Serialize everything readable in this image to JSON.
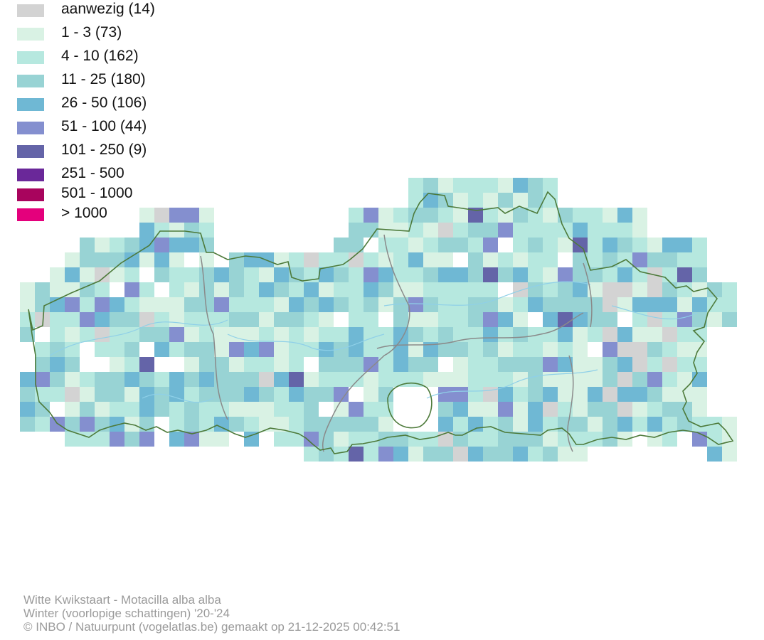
{
  "legend": {
    "items": [
      {
        "label": "aanwezig (14)",
        "color": "#d3d3d3"
      },
      {
        "label": "1 - 3 (73)",
        "color": "#d9f2e4"
      },
      {
        "label": "4 - 10 (162)",
        "color": "#b6e8df"
      },
      {
        "label": "11 - 25 (180)",
        "color": "#98d3d4"
      },
      {
        "label": "26 - 50 (106)",
        "color": "#6fb8d4"
      },
      {
        "label": "51 - 100 (44)",
        "color": "#848fcf"
      },
      {
        "label": "101 - 250 (9)",
        "color": "#6464a8"
      },
      {
        "label": "251 - 500",
        "color": "#6a2899"
      },
      {
        "label": "501 - 1000",
        "color": "#a8045d"
      },
      {
        "label": "> 1000",
        "color": "#e4007c"
      }
    ]
  },
  "map": {
    "outline_color": "#4d7a3a",
    "province_border_color": "#8a8a8a",
    "river_color": "#8fd0e8"
  },
  "caption": {
    "species": "Witte Kwikstaart - Motacilla alba alba",
    "season": "Winter (voorlopige schattingen) '20-'24",
    "credit": "© INBO / Natuurpunt (vogelatlas.be) gemaakt op 21-12-2025 00:42:51"
  }
}
